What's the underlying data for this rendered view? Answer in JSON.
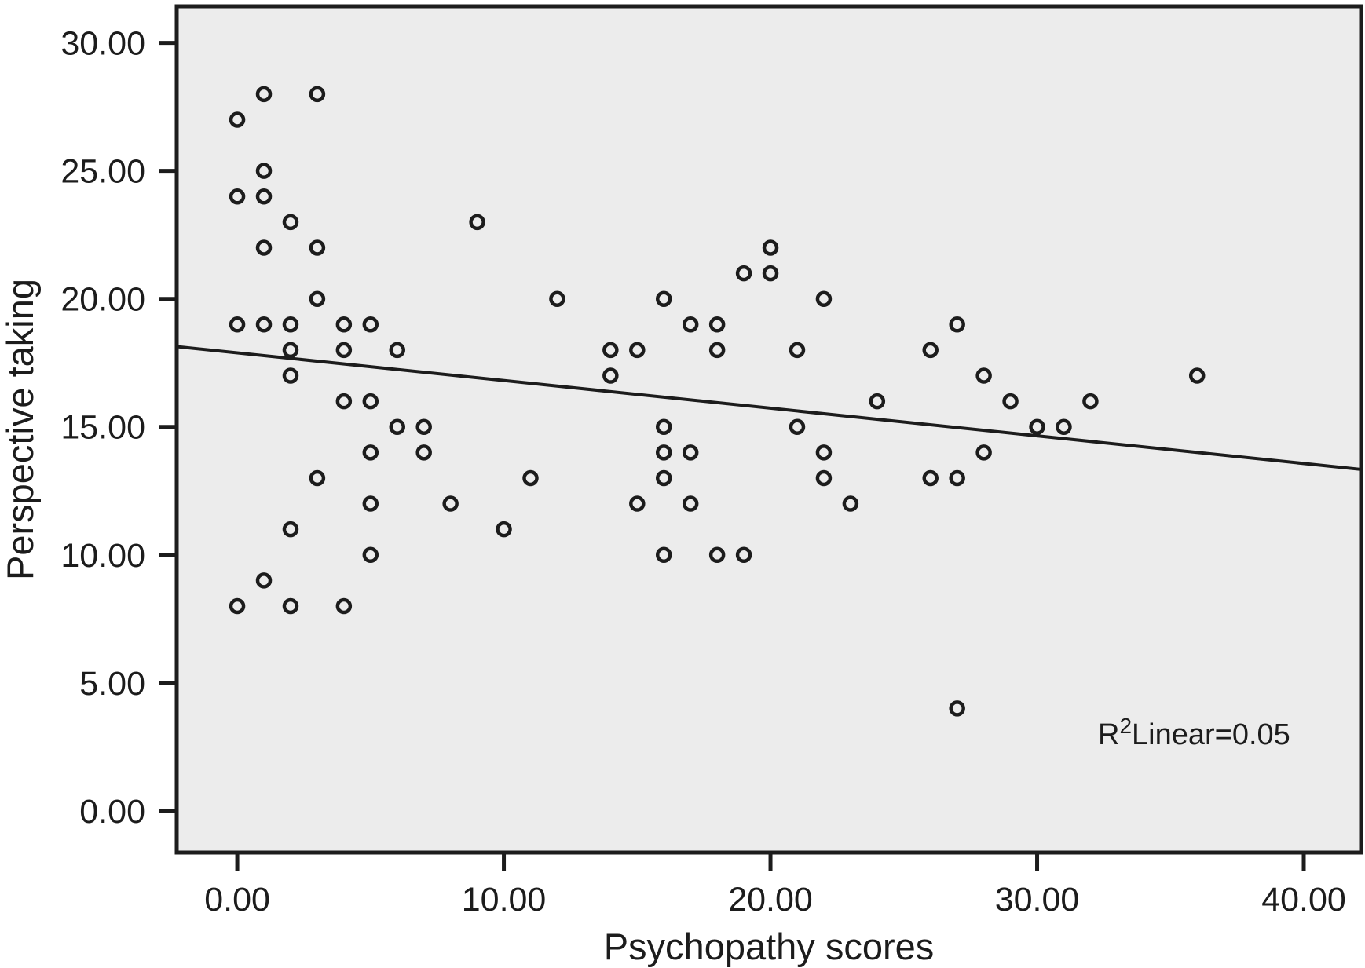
{
  "chart_data": {
    "type": "scatter",
    "title": "",
    "xlabel": "Psychopathy scores",
    "ylabel": "Perspective taking",
    "annotation": {
      "base": "R",
      "sup": "2",
      "rest": "Linear=0.05"
    },
    "xlim": [
      -2.27,
      42.15
    ],
    "ylim": [
      -1.63,
      31.43
    ],
    "grid": false,
    "legend": null,
    "x_ticks": [
      {
        "v": 0,
        "label": "0.00"
      },
      {
        "v": 10,
        "label": "10.00"
      },
      {
        "v": 20,
        "label": "20.00"
      },
      {
        "v": 30,
        "label": "30.00"
      },
      {
        "v": 40,
        "label": "40.00"
      }
    ],
    "y_ticks": [
      {
        "v": 0,
        "label": "0.00"
      },
      {
        "v": 5,
        "label": "5.00"
      },
      {
        "v": 10,
        "label": "10.00"
      },
      {
        "v": 15,
        "label": "15.00"
      },
      {
        "v": 20,
        "label": "20.00"
      },
      {
        "v": 25,
        "label": "25.00"
      },
      {
        "v": 30,
        "label": "30.00"
      }
    ],
    "points": [
      [
        1,
        28
      ],
      [
        3,
        28
      ],
      [
        0,
        27
      ],
      [
        1,
        25
      ],
      [
        0,
        24
      ],
      [
        1,
        24
      ],
      [
        2,
        23
      ],
      [
        9,
        23
      ],
      [
        1,
        22
      ],
      [
        3,
        22
      ],
      [
        3,
        20
      ],
      [
        0,
        19
      ],
      [
        1,
        19
      ],
      [
        2,
        19
      ],
      [
        4,
        19
      ],
      [
        5,
        19
      ],
      [
        2,
        18
      ],
      [
        4,
        18
      ],
      [
        6,
        18
      ],
      [
        2,
        17
      ],
      [
        4,
        16
      ],
      [
        5,
        16
      ],
      [
        6,
        15
      ],
      [
        7,
        15
      ],
      [
        5,
        14
      ],
      [
        7,
        14
      ],
      [
        3,
        13
      ],
      [
        5,
        12
      ],
      [
        8,
        12
      ],
      [
        2,
        11
      ],
      [
        10,
        11
      ],
      [
        5,
        10
      ],
      [
        1,
        9
      ],
      [
        0,
        8
      ],
      [
        2,
        8
      ],
      [
        4,
        8
      ],
      [
        20,
        22
      ],
      [
        19,
        21
      ],
      [
        20,
        21
      ],
      [
        12,
        20
      ],
      [
        16,
        20
      ],
      [
        22,
        20
      ],
      [
        17,
        19
      ],
      [
        18,
        19
      ],
      [
        14,
        18
      ],
      [
        15,
        18
      ],
      [
        18,
        18
      ],
      [
        21,
        18
      ],
      [
        14,
        17
      ],
      [
        24,
        16
      ],
      [
        16,
        15
      ],
      [
        21,
        15
      ],
      [
        16,
        14
      ],
      [
        17,
        14
      ],
      [
        22,
        14
      ],
      [
        11,
        13
      ],
      [
        16,
        13
      ],
      [
        22,
        13
      ],
      [
        15,
        12
      ],
      [
        17,
        12
      ],
      [
        23,
        12
      ],
      [
        16,
        10
      ],
      [
        18,
        10
      ],
      [
        19,
        10
      ],
      [
        27,
        19
      ],
      [
        26,
        18
      ],
      [
        28,
        17
      ],
      [
        36,
        17
      ],
      [
        29,
        16
      ],
      [
        32,
        16
      ],
      [
        30,
        15
      ],
      [
        31,
        15
      ],
      [
        28,
        14
      ],
      [
        26,
        13
      ],
      [
        27,
        13
      ],
      [
        27,
        4
      ]
    ],
    "regression_line": {
      "slope": -0.108,
      "intercept": 17.89,
      "r_squared": 0.05
    }
  },
  "colors": {
    "page_bg": "#ffffff",
    "plot_bg": "#ececec",
    "ink": "#1c1c1c"
  }
}
